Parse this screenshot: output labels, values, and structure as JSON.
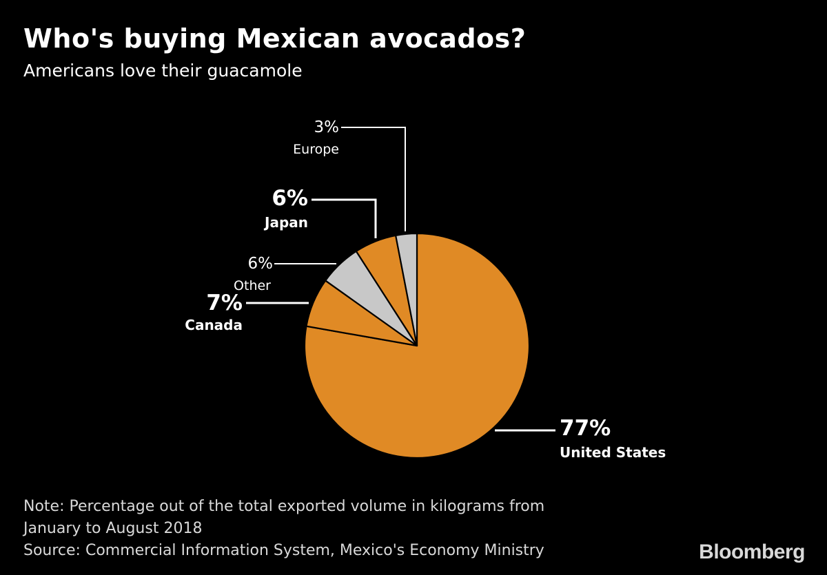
{
  "header": {
    "title": "Who's buying Mexican avocados?",
    "subtitle": "Americans love their guacamole"
  },
  "chart_data": {
    "type": "pie",
    "title": "Who's buying Mexican avocados?",
    "subtitle": "Americans love their guacamole",
    "start": "12 o'clock",
    "direction": "clockwise",
    "slices": [
      {
        "label": "United States",
        "value": 77,
        "value_label": "77%",
        "color": "#E08A25",
        "emphasis": "bold"
      },
      {
        "label": "Canada",
        "value": 7,
        "value_label": "7%",
        "color": "#E08A25",
        "emphasis": "bold"
      },
      {
        "label": "Other",
        "value": 6,
        "value_label": "6%",
        "color": "#C8C8C8",
        "emphasis": "normal"
      },
      {
        "label": "Japan",
        "value": 6,
        "value_label": "6%",
        "color": "#E08A25",
        "emphasis": "bold"
      },
      {
        "label": "Europe",
        "value": 3,
        "value_label": "3%",
        "color": "#C8C8C8",
        "emphasis": "normal"
      }
    ]
  },
  "footer": {
    "note_line1": "Note: Percentage out of the total exported volume in kilograms from",
    "note_line2": "January to August 2018",
    "source": "Source: Commercial Information System, Mexico's Economy Ministry",
    "brand": "Bloomberg"
  },
  "colors": {
    "background": "#000000",
    "text": "#FFFFFF",
    "accent": "#E08A25",
    "secondary": "#C8C8C8"
  }
}
